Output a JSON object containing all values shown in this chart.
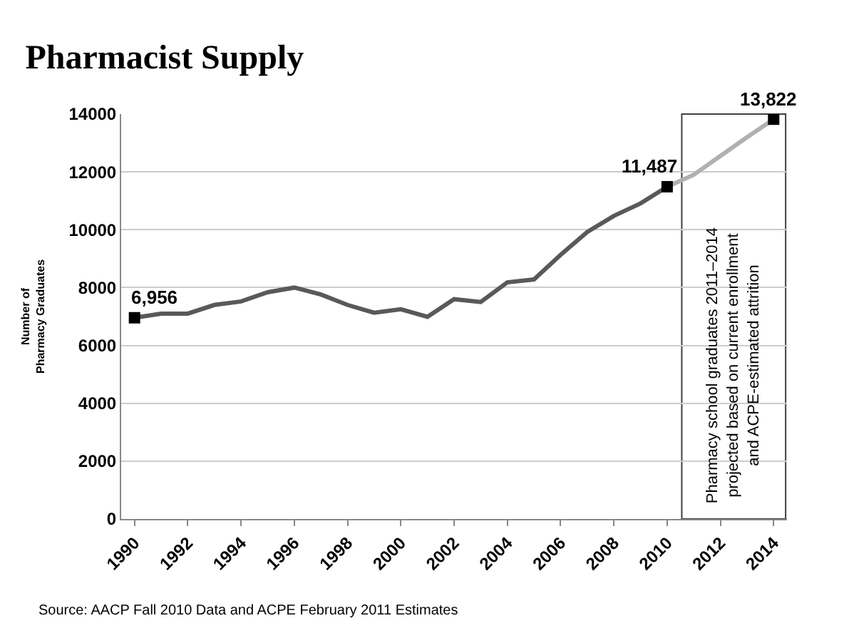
{
  "chart_data": {
    "type": "line",
    "title": "Pharmacist Supply",
    "ylabel": "Number of\nPharmacy Graduates",
    "xlim": [
      1989.5,
      2014.5
    ],
    "xticks": [
      1990,
      1992,
      1994,
      1996,
      1998,
      2000,
      2002,
      2004,
      2006,
      2008,
      2010,
      2012,
      2014
    ],
    "ylim": [
      0,
      14000
    ],
    "yticks": [
      0,
      2000,
      4000,
      6000,
      8000,
      10000,
      12000,
      14000
    ],
    "series": [
      {
        "color": "#595959",
        "x": [
          1990,
          1991,
          1992,
          1993,
          1994,
          1995,
          1996,
          1997,
          1998,
          1999,
          2000,
          2001,
          2002,
          2003,
          2004,
          2005,
          2006,
          2007,
          2008,
          2009,
          2010
        ],
        "values": [
          6956,
          7100,
          7100,
          7400,
          7520,
          7840,
          8000,
          7760,
          7400,
          7130,
          7250,
          6990,
          7600,
          7500,
          8180,
          8280,
          9130,
          9920,
          10480,
          10910,
          11487
        ]
      },
      {
        "color": "#b0b0b0",
        "x": [
          2010,
          2011,
          2012,
          2013,
          2014
        ],
        "values": [
          11487,
          11900,
          12550,
          13200,
          13822
        ]
      }
    ],
    "annotations": [
      {
        "text": "6,956",
        "x": 1990,
        "y": 6956
      },
      {
        "text": "11,487",
        "x": 2010,
        "y": 11487
      },
      {
        "text": "13,822",
        "x": 2014,
        "y": 13822
      },
      "Source: AACP Fall 2010 Data and ACPE February 2011 Estimates"
    ],
    "bands": [
      {
        "axis": "x",
        "from": 2010.55,
        "to": 2014.45,
        "label": "Pharmacy school graduates 2011–2014\nprojected based on current enrollment\nand ACPE-estimated attrition",
        "color": "#ffffff"
      }
    ],
    "grid": "y",
    "marker": "none",
    "line_style": "solid"
  }
}
